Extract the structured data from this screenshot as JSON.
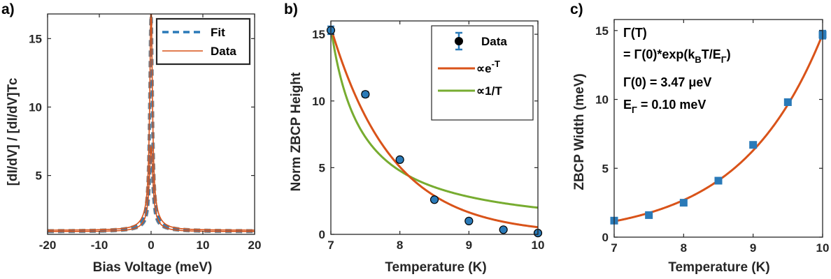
{
  "colors": {
    "fit_blue": "#2a7ab8",
    "data_orange": "#d95319",
    "green": "#77ac30",
    "marker_blue": "#2a7ab8",
    "gray": "#7f7f7f"
  },
  "chart_data": [
    {
      "id": "a",
      "panel_label": "a)",
      "type": "line",
      "title": "",
      "xlabel": "Bias Voltage (meV)",
      "ylabel": "[dI/dV] / [dI/dV]Tc",
      "xlim": [
        -20,
        20
      ],
      "ylim": [
        0.7,
        16.8
      ],
      "xticks": [
        -20,
        -10,
        0,
        10,
        20
      ],
      "yticks": [
        5,
        10,
        15
      ],
      "legend": {
        "position": "top-right",
        "entries": [
          "Fit",
          "Data"
        ]
      },
      "series": [
        {
          "name": "Fit",
          "style": "dashed",
          "color": "#2a7ab8",
          "curves": [
            {
              "baseline": 0.95,
              "amplitude": 15.3,
              "width": 0.3,
              "tail_amp": 0.4,
              "tail_width": 3.0
            },
            {
              "baseline": 0.9,
              "amplitude": 5.65,
              "width": 0.4,
              "tail_amp": 0.35,
              "tail_width": 3.0
            }
          ]
        },
        {
          "name": "Data",
          "style": "solid",
          "color": "#d95319",
          "curves": [
            {
              "baseline": 1.0,
              "amplitude": 15.4,
              "width": 0.3,
              "tail_amp": 1.1,
              "tail_width": 1.6
            },
            {
              "baseline": 0.9,
              "amplitude": 5.7,
              "width": 0.42,
              "tail_amp": 0.5,
              "tail_width": 2.0
            }
          ]
        }
      ]
    },
    {
      "id": "b",
      "panel_label": "b)",
      "type": "scatter",
      "title": "",
      "xlabel": "Temperature (K)",
      "ylabel": "Norm ZBCP Height",
      "xlim": [
        7,
        10
      ],
      "ylim": [
        0,
        16
      ],
      "xticks": [
        7,
        8,
        9,
        10
      ],
      "yticks": [
        0,
        5,
        10,
        15
      ],
      "legend": {
        "position": "top-right",
        "entries": [
          "Data",
          "∝e",
          "-T",
          "∝1/T"
        ]
      },
      "series": [
        {
          "name": "Data",
          "x": [
            7.0,
            7.5,
            8.0,
            8.5,
            9.0,
            9.5,
            10.0
          ],
          "y": [
            15.3,
            10.5,
            5.6,
            2.6,
            1.0,
            0.35,
            0.1
          ],
          "yerr": [
            0.3,
            0.2,
            0.15,
            0.12,
            0.1,
            0.1,
            0.1
          ]
        },
        {
          "name": "∝e-T",
          "model": "exp",
          "A": 15.5,
          "k": 1.12
        },
        {
          "name": "∝1/T",
          "model": "inverse",
          "A": 15.5,
          "offset": 7.0,
          "p": 1.5,
          "floor": 0.0
        }
      ]
    },
    {
      "id": "c",
      "panel_label": "c)",
      "type": "scatter",
      "title": "",
      "xlabel": "Temperature (K)",
      "ylabel": "ZBCP Width (meV)",
      "xlim": [
        7,
        10
      ],
      "ylim": [
        0,
        15.8
      ],
      "xticks": [
        7,
        8,
        9,
        10
      ],
      "yticks": [
        0,
        5,
        10,
        15
      ],
      "annotation": {
        "line1": "Γ(T)",
        "line2a": "= Γ(0)*exp(k",
        "line2b": "B",
        "line2c": "T/E",
        "line2d": "Γ",
        "line2e": ")",
        "line3": "Γ(0) = 3.47 μeV",
        "line4a": "E",
        "line4b": "Γ",
        "line4c": " = 0.10 meV"
      },
      "series": [
        {
          "name": "Data",
          "x": [
            7.0,
            7.5,
            8.0,
            8.5,
            9.0,
            9.5,
            10.0
          ],
          "y": [
            1.2,
            1.6,
            2.5,
            4.1,
            6.7,
            9.8,
            14.7
          ],
          "yerr": [
            0.15,
            0.15,
            0.15,
            0.15,
            0.15,
            0.2,
            0.3
          ]
        },
        {
          "name": "Fit",
          "model": "exp",
          "A": 1.15,
          "k": 0.85
        }
      ]
    }
  ]
}
